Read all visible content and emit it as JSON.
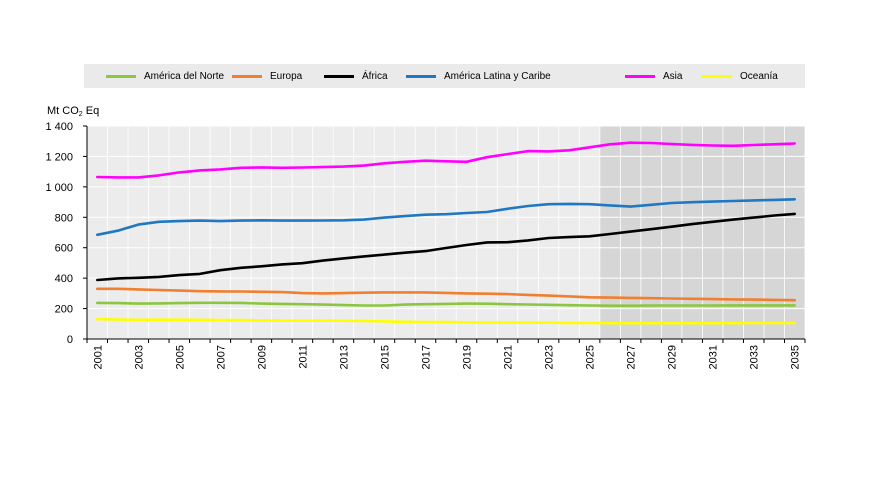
{
  "chart_data": {
    "type": "line",
    "title": "",
    "ylabel_main": "Mt CO",
    "ylabel_sub": "2",
    "ylabel_end": " Eq",
    "xlabel": "",
    "ylim": [
      0,
      1400
    ],
    "yticks": [
      0,
      200,
      400,
      600,
      800,
      1000,
      1200,
      1400
    ],
    "ytick_labels": [
      "0",
      "200",
      "400",
      "600",
      "800",
      "1 000",
      "1 200",
      "1 400"
    ],
    "x": [
      2001,
      2002,
      2003,
      2004,
      2005,
      2006,
      2007,
      2008,
      2009,
      2010,
      2011,
      2012,
      2013,
      2014,
      2015,
      2016,
      2017,
      2018,
      2019,
      2020,
      2021,
      2022,
      2023,
      2024,
      2025,
      2026,
      2027,
      2028,
      2029,
      2030,
      2031,
      2032,
      2033,
      2034,
      2035
    ],
    "xtick_labels": [
      "2001",
      "2003",
      "2005",
      "2007",
      "2009",
      "2011",
      "2013",
      "2015",
      "2017",
      "2019",
      "2021",
      "2023",
      "2025",
      "2027",
      "2029",
      "2031",
      "2033",
      "2035"
    ],
    "projection_start": 2026,
    "grid": true,
    "legend_position": "top",
    "series": [
      {
        "name": "América del Norte",
        "color": "#8cc63f",
        "values": [
          237,
          236,
          233,
          234,
          236,
          238,
          238,
          237,
          233,
          231,
          229,
          226,
          223,
          220,
          220,
          226,
          229,
          231,
          233,
          232,
          229,
          227,
          225,
          222,
          220,
          219,
          219,
          220,
          220,
          220,
          220,
          221,
          221,
          221,
          221
        ]
      },
      {
        "name": "Europa",
        "color": "#f07f2f",
        "values": [
          330,
          330,
          326,
          322,
          318,
          314,
          313,
          312,
          310,
          308,
          302,
          300,
          302,
          304,
          306,
          306,
          306,
          303,
          300,
          298,
          295,
          290,
          285,
          280,
          274,
          272,
          270,
          268,
          266,
          264,
          262,
          260,
          259,
          257,
          255
        ]
      },
      {
        "name": "África",
        "color": "#000000",
        "values": [
          388,
          398,
          402,
          408,
          420,
          428,
          452,
          468,
          478,
          490,
          498,
          515,
          530,
          543,
          555,
          567,
          578,
          598,
          618,
          635,
          636,
          648,
          664,
          670,
          675,
          690,
          706,
          722,
          738,
          755,
          770,
          785,
          798,
          812,
          822
        ]
      },
      {
        "name": "América Latina y Caribe",
        "color": "#1f78c1",
        "values": [
          685,
          712,
          752,
          770,
          775,
          778,
          775,
          778,
          780,
          778,
          778,
          779,
          780,
          785,
          798,
          808,
          817,
          820,
          828,
          835,
          856,
          874,
          886,
          888,
          886,
          878,
          870,
          882,
          894,
          899,
          903,
          907,
          911,
          914,
          918
        ]
      },
      {
        "name": "Asia",
        "color": "#ff00ff",
        "values": [
          1065,
          1062,
          1062,
          1075,
          1095,
          1108,
          1115,
          1125,
          1128,
          1125,
          1127,
          1130,
          1133,
          1140,
          1155,
          1165,
          1172,
          1168,
          1165,
          1195,
          1215,
          1235,
          1233,
          1240,
          1260,
          1280,
          1290,
          1288,
          1282,
          1276,
          1272,
          1270,
          1275,
          1280,
          1285
        ]
      },
      {
        "name": "Oceanía",
        "color": "#ffff00",
        "values": [
          130,
          128,
          126,
          127,
          127,
          126,
          125,
          124,
          122,
          120,
          120,
          120,
          120,
          118,
          116,
          113,
          112,
          111,
          110,
          109,
          108,
          108,
          107,
          106,
          105,
          104,
          104,
          104,
          104,
          104,
          104,
          104,
          105,
          105,
          105
        ]
      }
    ]
  }
}
